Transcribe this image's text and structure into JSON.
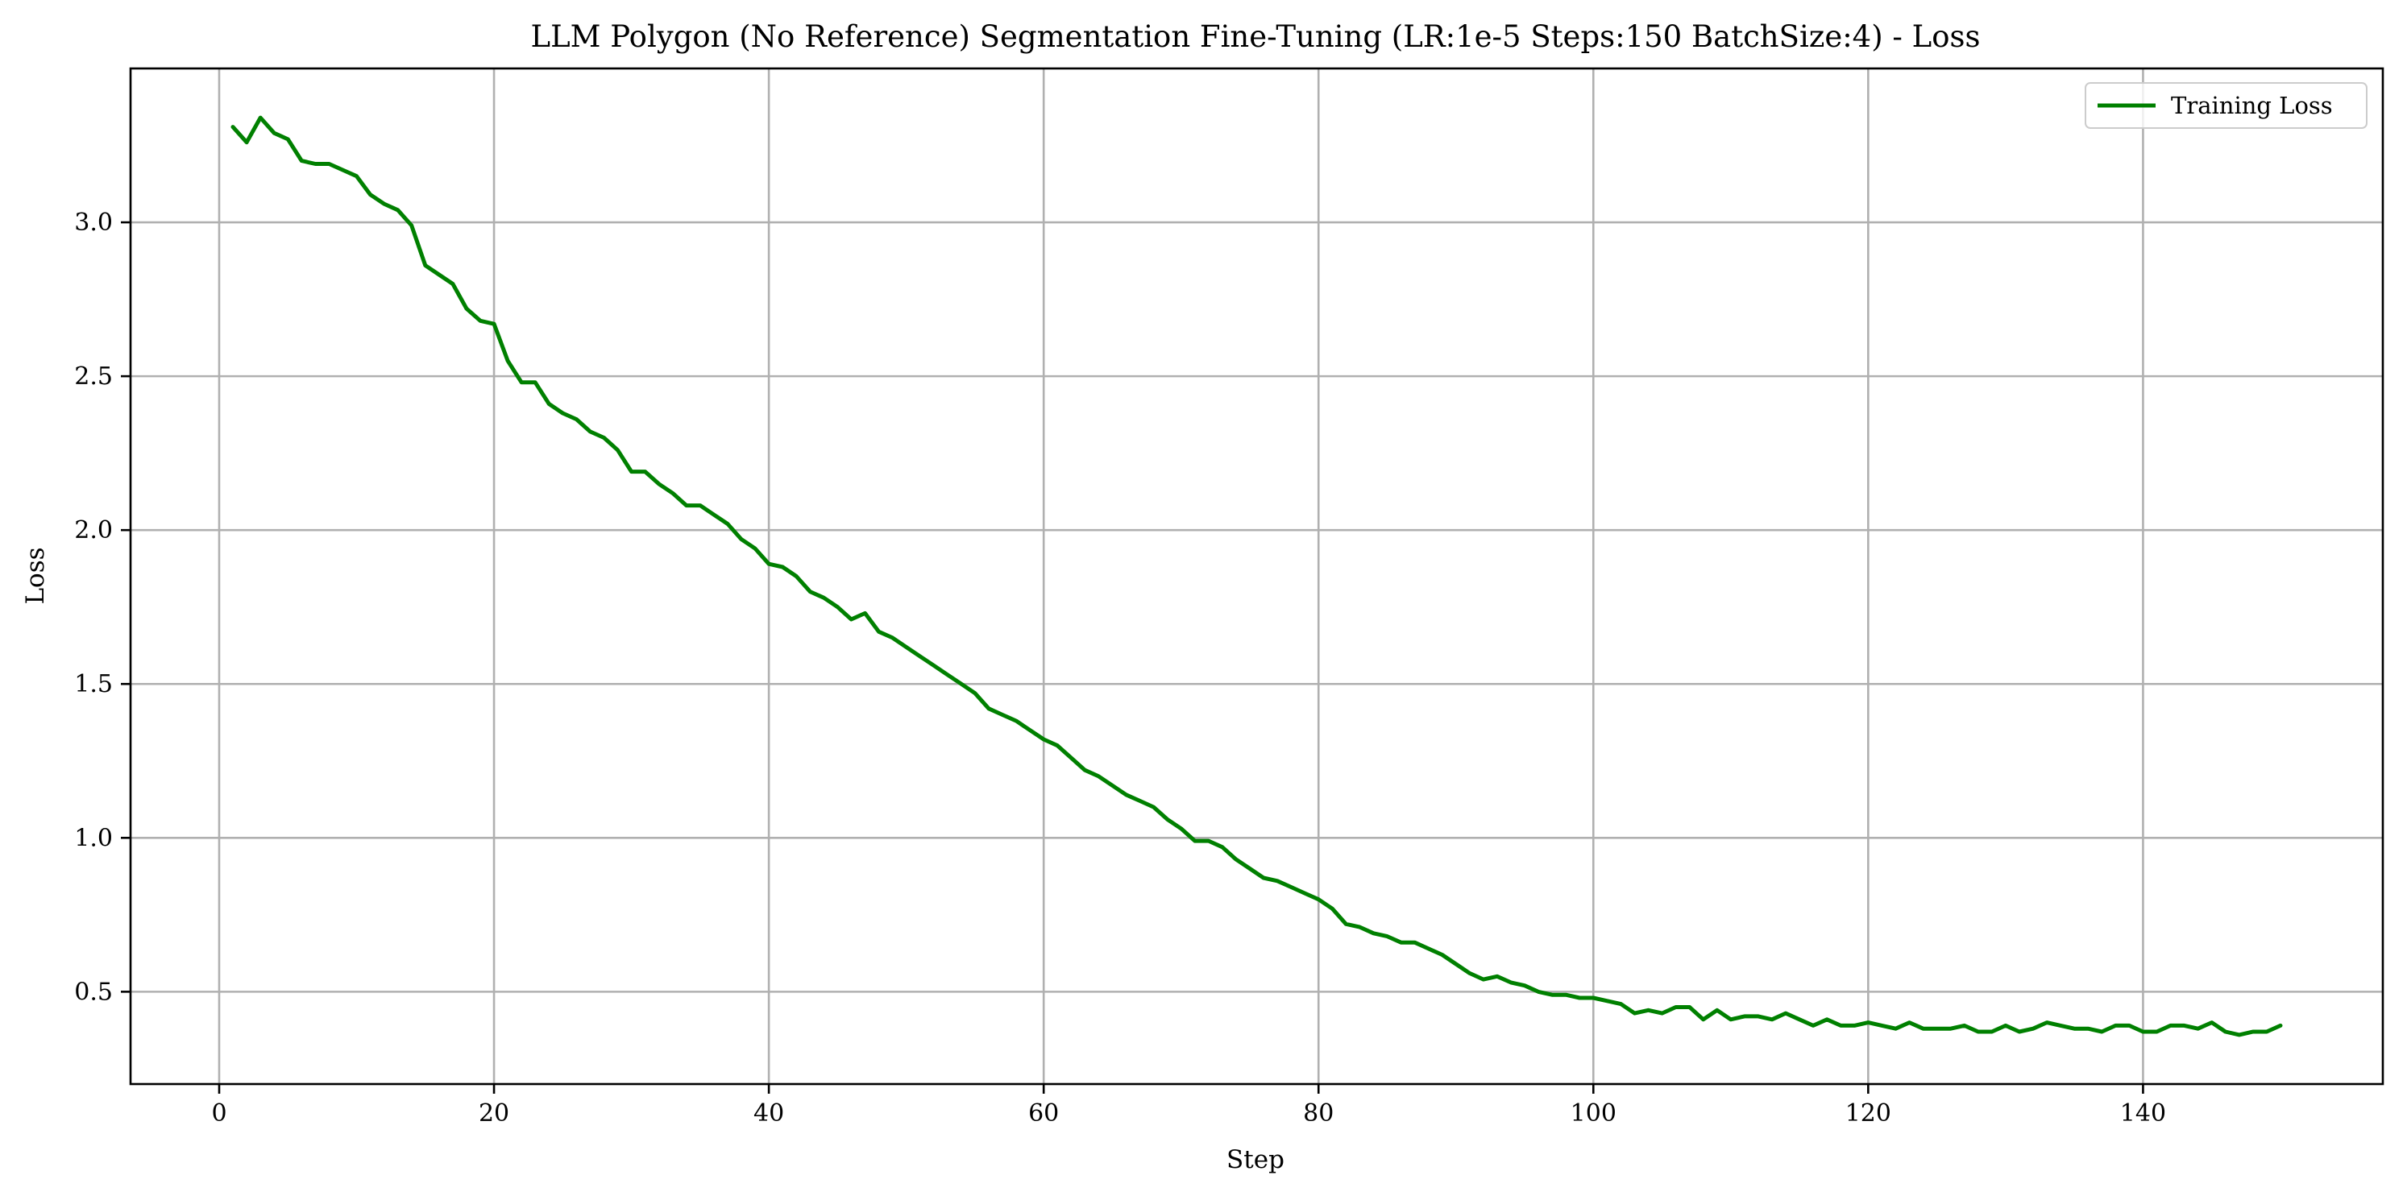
{
  "chart_data": {
    "type": "line",
    "title": "LLM Polygon (No Reference) Segmentation Fine-Tuning (LR:1e-5 Steps:150 BatchSize:4) - Loss",
    "xlabel": "Step",
    "ylabel": "Loss",
    "xlim": [
      -6.45,
      157.45
    ],
    "ylim": [
      0.2,
      3.5
    ],
    "xticks": [
      0,
      20,
      40,
      60,
      80,
      100,
      120,
      140
    ],
    "yticks": [
      0.5,
      1.0,
      1.5,
      2.0,
      2.5,
      3.0
    ],
    "xtick_labels": [
      "0",
      "20",
      "40",
      "60",
      "80",
      "100",
      "120",
      "140"
    ],
    "ytick_labels": [
      "0.5",
      "1.0",
      "1.5",
      "2.0",
      "2.5",
      "3.0"
    ],
    "grid": true,
    "legend_position": "top-right",
    "series": [
      {
        "name": "Training Loss",
        "color": "#008000",
        "x": [
          1,
          2,
          3,
          4,
          5,
          6,
          7,
          8,
          9,
          10,
          11,
          12,
          13,
          14,
          15,
          16,
          17,
          18,
          19,
          20,
          21,
          22,
          23,
          24,
          25,
          26,
          27,
          28,
          29,
          30,
          31,
          32,
          33,
          34,
          35,
          36,
          37,
          38,
          39,
          40,
          41,
          42,
          43,
          44,
          45,
          46,
          47,
          48,
          49,
          50,
          51,
          52,
          53,
          54,
          55,
          56,
          57,
          58,
          59,
          60,
          61,
          62,
          63,
          64,
          65,
          66,
          67,
          68,
          69,
          70,
          71,
          72,
          73,
          74,
          75,
          76,
          77,
          78,
          79,
          80,
          81,
          82,
          83,
          84,
          85,
          86,
          87,
          88,
          89,
          90,
          91,
          92,
          93,
          94,
          95,
          96,
          97,
          98,
          99,
          100,
          101,
          102,
          103,
          104,
          105,
          106,
          107,
          108,
          109,
          110,
          111,
          112,
          113,
          114,
          115,
          116,
          117,
          118,
          119,
          120,
          121,
          122,
          123,
          124,
          125,
          126,
          127,
          128,
          129,
          130,
          131,
          132,
          133,
          134,
          135,
          136,
          137,
          138,
          139,
          140,
          141,
          142,
          143,
          144,
          145,
          146,
          147,
          148,
          149,
          150
        ],
        "values": [
          3.31,
          3.26,
          3.34,
          3.29,
          3.27,
          3.2,
          3.19,
          3.19,
          3.17,
          3.15,
          3.09,
          3.06,
          3.04,
          2.99,
          2.86,
          2.83,
          2.8,
          2.72,
          2.68,
          2.67,
          2.55,
          2.48,
          2.48,
          2.41,
          2.38,
          2.36,
          2.32,
          2.3,
          2.26,
          2.19,
          2.19,
          2.15,
          2.12,
          2.08,
          2.08,
          2.05,
          2.02,
          1.97,
          1.94,
          1.89,
          1.88,
          1.85,
          1.8,
          1.78,
          1.75,
          1.71,
          1.73,
          1.67,
          1.65,
          1.62,
          1.59,
          1.56,
          1.53,
          1.5,
          1.47,
          1.42,
          1.4,
          1.38,
          1.35,
          1.32,
          1.3,
          1.26,
          1.22,
          1.2,
          1.17,
          1.14,
          1.12,
          1.1,
          1.06,
          1.03,
          0.99,
          0.99,
          0.97,
          0.93,
          0.9,
          0.87,
          0.86,
          0.84,
          0.82,
          0.8,
          0.77,
          0.72,
          0.71,
          0.69,
          0.68,
          0.66,
          0.66,
          0.64,
          0.62,
          0.59,
          0.56,
          0.54,
          0.55,
          0.53,
          0.52,
          0.5,
          0.49,
          0.49,
          0.48,
          0.48,
          0.47,
          0.46,
          0.43,
          0.44,
          0.43,
          0.45,
          0.45,
          0.41,
          0.44,
          0.41,
          0.42,
          0.42,
          0.41,
          0.43,
          0.41,
          0.39,
          0.41,
          0.39,
          0.39,
          0.4,
          0.39,
          0.38,
          0.4,
          0.38,
          0.38,
          0.38,
          0.39,
          0.37,
          0.37,
          0.39,
          0.37,
          0.38,
          0.4,
          0.39,
          0.38,
          0.38,
          0.37,
          0.39,
          0.39,
          0.37,
          0.37,
          0.39,
          0.39,
          0.38,
          0.4,
          0.37,
          0.36,
          0.37,
          0.37,
          0.39
        ]
      }
    ]
  }
}
